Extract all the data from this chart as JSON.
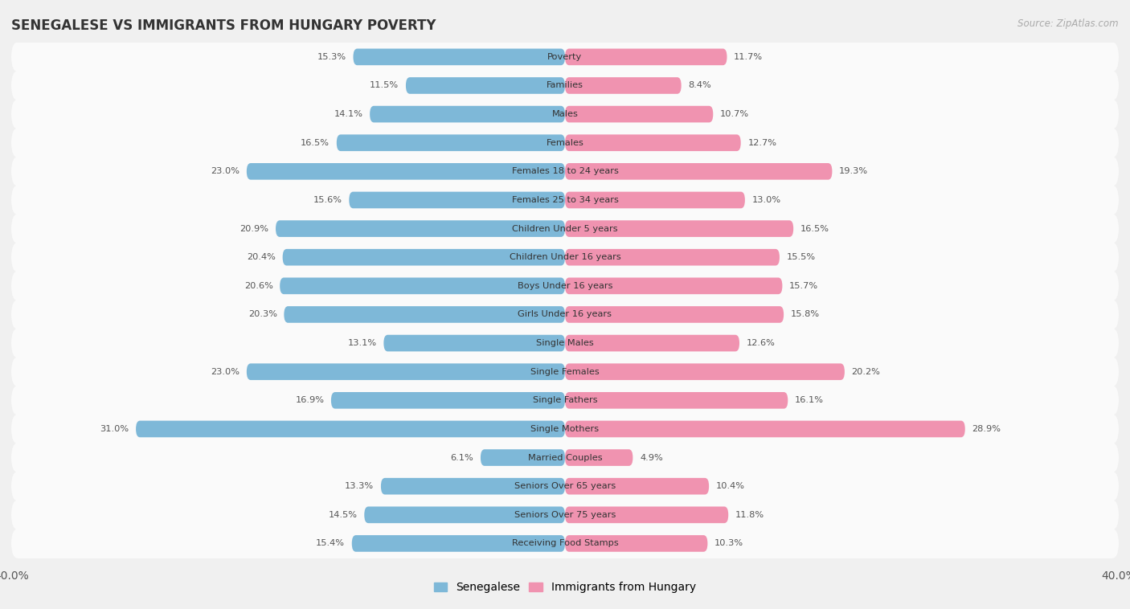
{
  "title": "SENEGALESE VS IMMIGRANTS FROM HUNGARY POVERTY",
  "source": "Source: ZipAtlas.com",
  "categories": [
    "Poverty",
    "Families",
    "Males",
    "Females",
    "Females 18 to 24 years",
    "Females 25 to 34 years",
    "Children Under 5 years",
    "Children Under 16 years",
    "Boys Under 16 years",
    "Girls Under 16 years",
    "Single Males",
    "Single Females",
    "Single Fathers",
    "Single Mothers",
    "Married Couples",
    "Seniors Over 65 years",
    "Seniors Over 75 years",
    "Receiving Food Stamps"
  ],
  "senegalese": [
    15.3,
    11.5,
    14.1,
    16.5,
    23.0,
    15.6,
    20.9,
    20.4,
    20.6,
    20.3,
    13.1,
    23.0,
    16.9,
    31.0,
    6.1,
    13.3,
    14.5,
    15.4
  ],
  "hungary": [
    11.7,
    8.4,
    10.7,
    12.7,
    19.3,
    13.0,
    16.5,
    15.5,
    15.7,
    15.8,
    12.6,
    20.2,
    16.1,
    28.9,
    4.9,
    10.4,
    11.8,
    10.3
  ],
  "senegalese_color": "#7eb8d8",
  "hungary_color": "#f093b0",
  "background_color": "#f0f0f0",
  "row_bg_color": "#e8e8e8",
  "row_white_color": "#fafafa",
  "xlim": 40.0,
  "bar_height": 0.58,
  "legend_label_senegalese": "Senegalese",
  "legend_label_hungary": "Immigrants from Hungary"
}
